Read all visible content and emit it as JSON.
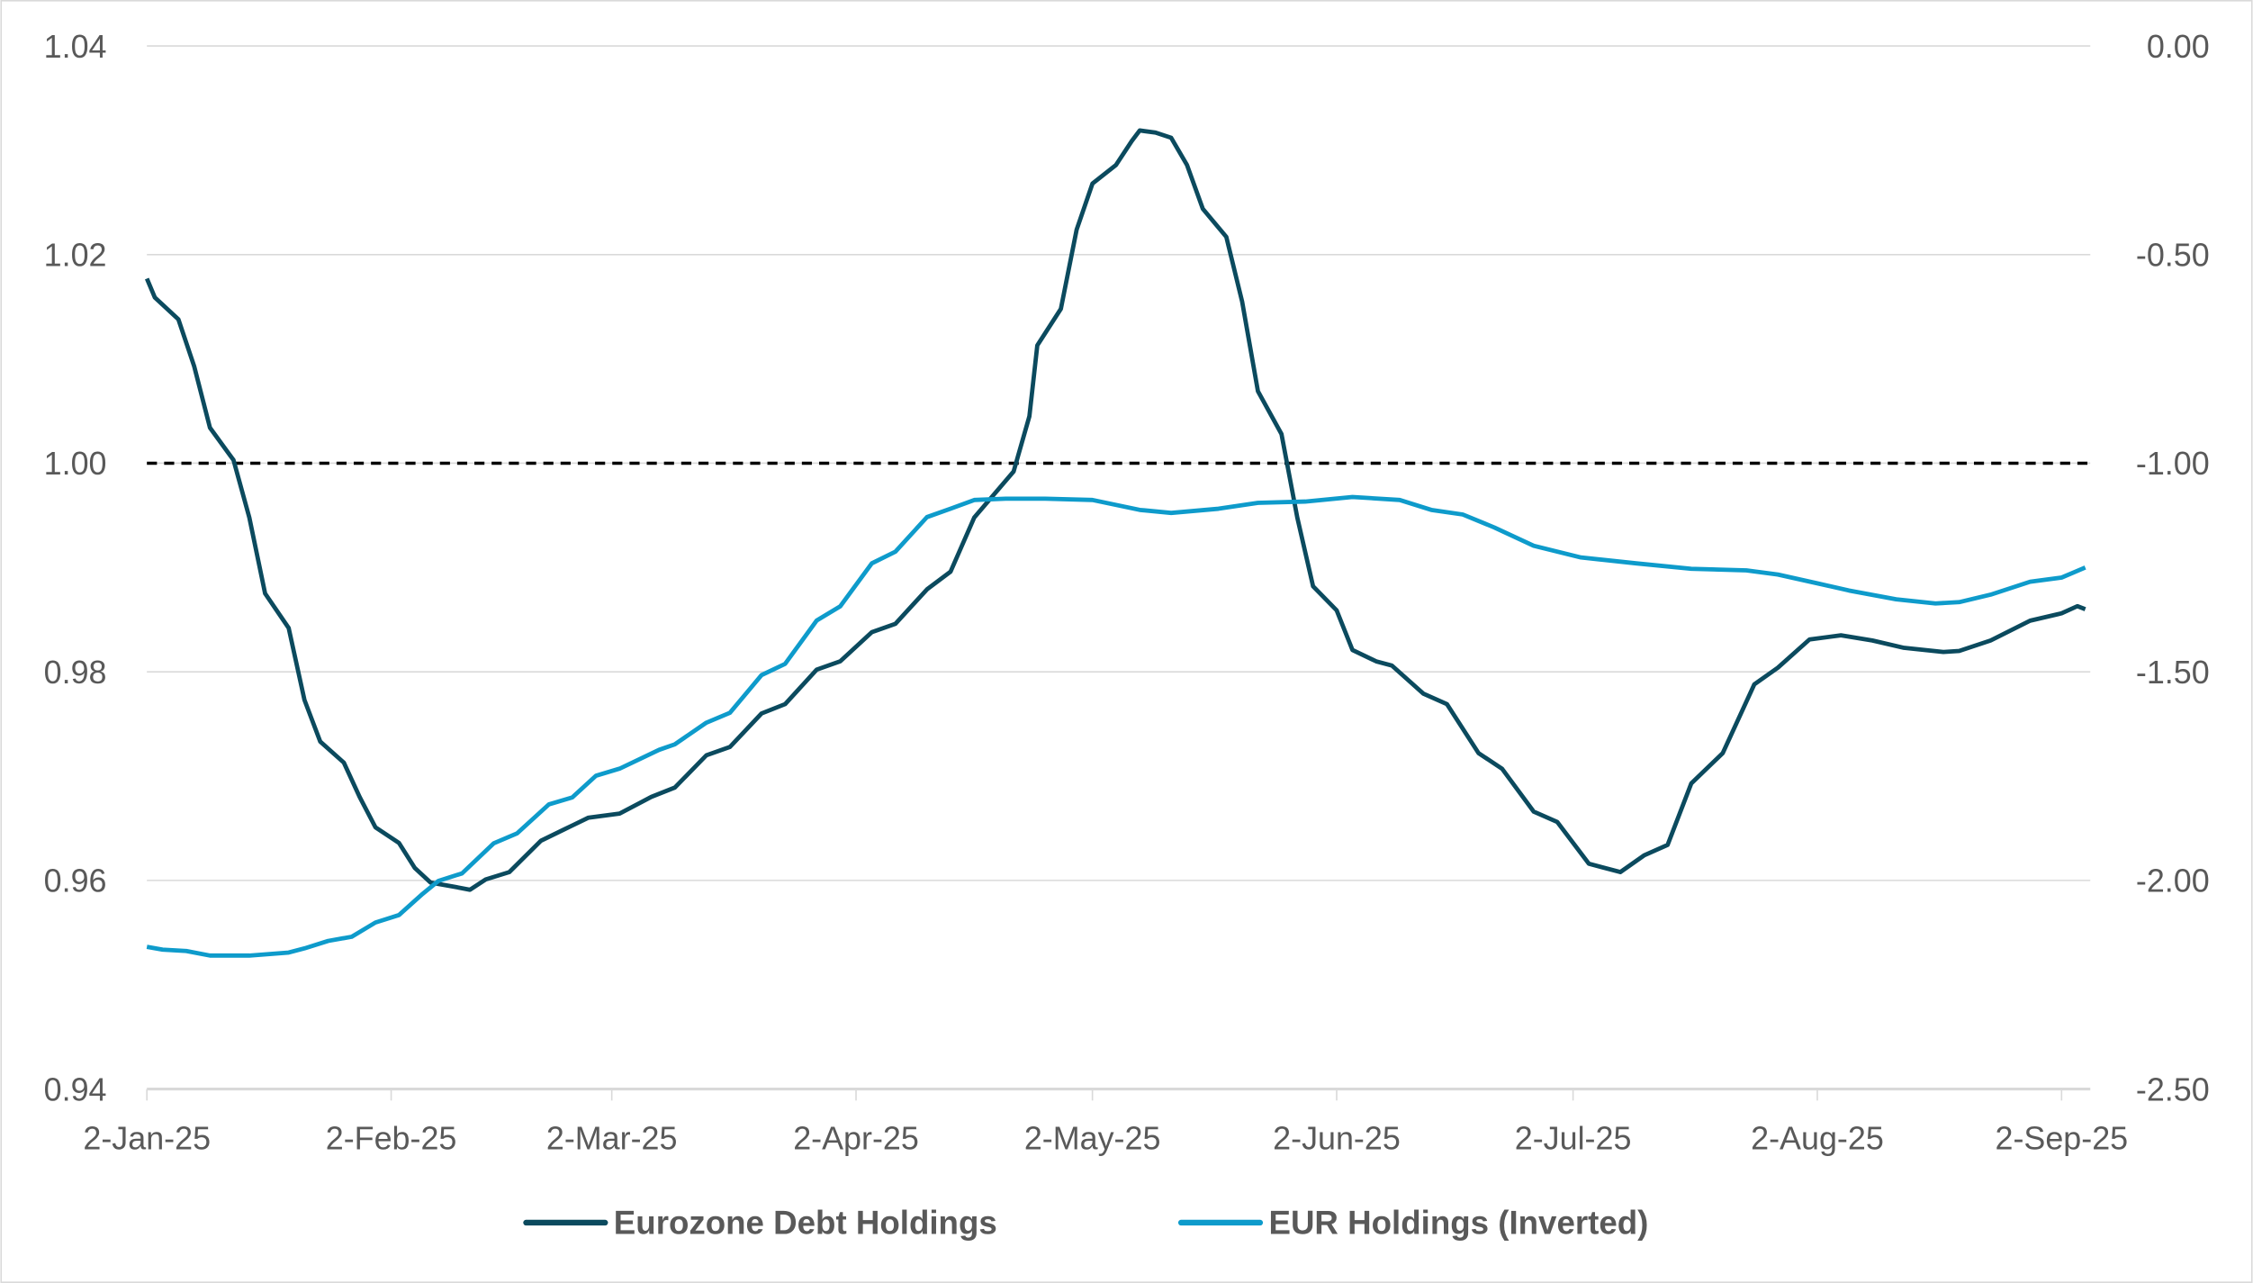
{
  "chart_data": {
    "type": "line",
    "title": "",
    "x_range": [
      "2025-01-02",
      "2025-09-06"
    ],
    "x_ticks": [
      {
        "date": "2025-01-02",
        "label": "2-Jan-25"
      },
      {
        "date": "2025-02-02",
        "label": "2-Feb-25"
      },
      {
        "date": "2025-03-02",
        "label": "2-Mar-25"
      },
      {
        "date": "2025-04-02",
        "label": "2-Apr-25"
      },
      {
        "date": "2025-05-02",
        "label": "2-May-25"
      },
      {
        "date": "2025-06-02",
        "label": "2-Jun-25"
      },
      {
        "date": "2025-07-02",
        "label": "2-Jul-25"
      },
      {
        "date": "2025-08-02",
        "label": "2-Aug-25"
      },
      {
        "date": "2025-09-02",
        "label": "2-Sep-25"
      }
    ],
    "y_left": {
      "range": [
        0.94,
        1.04
      ],
      "ticks": [
        "0.94",
        "0.96",
        "0.98",
        "1.00",
        "1.02",
        "1.04"
      ]
    },
    "y_right": {
      "range": [
        -2.5,
        0
      ],
      "ticks": [
        "-2.50",
        "-2.00",
        "-1.50",
        "-1.00",
        "-0.50",
        "0.00"
      ]
    },
    "grid": true,
    "reference_line": {
      "axis": "left",
      "value": 1.0,
      "style": "dashed",
      "color": "#000000"
    },
    "legend_position": "bottom",
    "series": [
      {
        "name": "Eurozone Debt Holdings",
        "axis": "left",
        "color": "#0B4A5E",
        "points": [
          [
            "2025-01-02",
            1.0177
          ],
          [
            "2025-01-03",
            1.0159
          ],
          [
            "2025-01-06",
            1.0138
          ],
          [
            "2025-01-08",
            1.0093
          ],
          [
            "2025-01-10",
            1.0034
          ],
          [
            "2025-01-13",
            1.0003
          ],
          [
            "2025-01-15",
            0.9948
          ],
          [
            "2025-01-17",
            0.9875
          ],
          [
            "2025-01-20",
            0.9842
          ],
          [
            "2025-01-22",
            0.9773
          ],
          [
            "2025-01-24",
            0.9733
          ],
          [
            "2025-01-27",
            0.9713
          ],
          [
            "2025-01-29",
            0.968
          ],
          [
            "2025-01-31",
            0.9651
          ],
          [
            "2025-02-03",
            0.9636
          ],
          [
            "2025-02-05",
            0.9612
          ],
          [
            "2025-02-07",
            0.9598
          ],
          [
            "2025-02-10",
            0.9594
          ],
          [
            "2025-02-12",
            0.9591
          ],
          [
            "2025-02-14",
            0.9601
          ],
          [
            "2025-02-17",
            0.9608
          ],
          [
            "2025-02-21",
            0.9638
          ],
          [
            "2025-02-24",
            0.9649
          ],
          [
            "2025-02-27",
            0.966
          ],
          [
            "2025-03-03",
            0.9664
          ],
          [
            "2025-03-07",
            0.968
          ],
          [
            "2025-03-10",
            0.9689
          ],
          [
            "2025-03-14",
            0.972
          ],
          [
            "2025-03-17",
            0.9728
          ],
          [
            "2025-03-21",
            0.976
          ],
          [
            "2025-03-24",
            0.9769
          ],
          [
            "2025-03-28",
            0.9802
          ],
          [
            "2025-03-31",
            0.981
          ],
          [
            "2025-04-04",
            0.9838
          ],
          [
            "2025-04-07",
            0.9846
          ],
          [
            "2025-04-11",
            0.9879
          ],
          [
            "2025-04-14",
            0.9896
          ],
          [
            "2025-04-17",
            0.9948
          ],
          [
            "2025-04-22",
            0.9992
          ],
          [
            "2025-04-24",
            1.0045
          ],
          [
            "2025-04-25",
            1.0113
          ],
          [
            "2025-04-28",
            1.0148
          ],
          [
            "2025-04-30",
            1.0224
          ],
          [
            "2025-05-02",
            1.0268
          ],
          [
            "2025-05-05",
            1.0286
          ],
          [
            "2025-05-07",
            1.0309
          ],
          [
            "2025-05-08",
            1.0319
          ],
          [
            "2025-05-10",
            1.0317
          ],
          [
            "2025-05-12",
            1.0312
          ],
          [
            "2025-05-14",
            1.0286
          ],
          [
            "2025-05-16",
            1.0244
          ],
          [
            "2025-05-19",
            1.0217
          ],
          [
            "2025-05-21",
            1.0155
          ],
          [
            "2025-05-23",
            1.0069
          ],
          [
            "2025-05-26",
            1.0028
          ],
          [
            "2025-05-28",
            0.9948
          ],
          [
            "2025-05-30",
            0.9882
          ],
          [
            "2025-06-02",
            0.9859
          ],
          [
            "2025-06-04",
            0.9821
          ],
          [
            "2025-06-07",
            0.981
          ],
          [
            "2025-06-09",
            0.9806
          ],
          [
            "2025-06-13",
            0.9779
          ],
          [
            "2025-06-16",
            0.9769
          ],
          [
            "2025-06-20",
            0.9722
          ],
          [
            "2025-06-23",
            0.9707
          ],
          [
            "2025-06-27",
            0.9666
          ],
          [
            "2025-06-30",
            0.9656
          ],
          [
            "2025-07-04",
            0.9616
          ],
          [
            "2025-07-08",
            0.9608
          ],
          [
            "2025-07-11",
            0.9624
          ],
          [
            "2025-07-14",
            0.9634
          ],
          [
            "2025-07-17",
            0.9693
          ],
          [
            "2025-07-21",
            0.9722
          ],
          [
            "2025-07-25",
            0.9788
          ],
          [
            "2025-07-28",
            0.9804
          ],
          [
            "2025-08-01",
            0.9831
          ],
          [
            "2025-08-05",
            0.9835
          ],
          [
            "2025-08-09",
            0.983
          ],
          [
            "2025-08-13",
            0.9823
          ],
          [
            "2025-08-18",
            0.9819
          ],
          [
            "2025-08-20",
            0.982
          ],
          [
            "2025-08-24",
            0.983
          ],
          [
            "2025-08-29",
            0.9849
          ],
          [
            "2025-09-02",
            0.9856
          ],
          [
            "2025-09-04",
            0.9863
          ],
          [
            "2025-09-05",
            0.986
          ]
        ]
      },
      {
        "name": "EUR Holdings (Inverted)",
        "axis": "right",
        "color": "#0E9BCB",
        "points": [
          [
            "2025-01-02",
            -2.159
          ],
          [
            "2025-01-04",
            -2.166
          ],
          [
            "2025-01-07",
            -2.169
          ],
          [
            "2025-01-10",
            -2.18
          ],
          [
            "2025-01-15",
            -2.18
          ],
          [
            "2025-01-20",
            -2.173
          ],
          [
            "2025-01-22",
            -2.163
          ],
          [
            "2025-01-25",
            -2.145
          ],
          [
            "2025-01-28",
            -2.135
          ],
          [
            "2025-01-31",
            -2.101
          ],
          [
            "2025-02-03",
            -2.083
          ],
          [
            "2025-02-06",
            -2.032
          ],
          [
            "2025-02-08",
            -2.001
          ],
          [
            "2025-02-11",
            -1.983
          ],
          [
            "2025-02-15",
            -1.911
          ],
          [
            "2025-02-18",
            -1.887
          ],
          [
            "2025-02-22",
            -1.818
          ],
          [
            "2025-02-25",
            -1.801
          ],
          [
            "2025-02-28",
            -1.749
          ],
          [
            "2025-03-03",
            -1.732
          ],
          [
            "2025-03-08",
            -1.687
          ],
          [
            "2025-03-10",
            -1.674
          ],
          [
            "2025-03-14",
            -1.622
          ],
          [
            "2025-03-17",
            -1.598
          ],
          [
            "2025-03-21",
            -1.508
          ],
          [
            "2025-03-24",
            -1.481
          ],
          [
            "2025-03-28",
            -1.377
          ],
          [
            "2025-03-31",
            -1.343
          ],
          [
            "2025-04-04",
            -1.24
          ],
          [
            "2025-04-07",
            -1.212
          ],
          [
            "2025-04-11",
            -1.129
          ],
          [
            "2025-04-14",
            -1.109
          ],
          [
            "2025-04-17",
            -1.088
          ],
          [
            "2025-04-21",
            -1.085
          ],
          [
            "2025-04-26",
            -1.085
          ],
          [
            "2025-05-02",
            -1.088
          ],
          [
            "2025-05-08",
            -1.112
          ],
          [
            "2025-05-12",
            -1.119
          ],
          [
            "2025-05-18",
            -1.109
          ],
          [
            "2025-05-23",
            -1.095
          ],
          [
            "2025-05-29",
            -1.092
          ],
          [
            "2025-06-04",
            -1.081
          ],
          [
            "2025-06-10",
            -1.088
          ],
          [
            "2025-06-14",
            -1.112
          ],
          [
            "2025-06-18",
            -1.123
          ],
          [
            "2025-06-22",
            -1.154
          ],
          [
            "2025-06-27",
            -1.198
          ],
          [
            "2025-07-03",
            -1.226
          ],
          [
            "2025-07-10",
            -1.24
          ],
          [
            "2025-07-17",
            -1.253
          ],
          [
            "2025-07-24",
            -1.257
          ],
          [
            "2025-07-28",
            -1.267
          ],
          [
            "2025-08-02",
            -1.288
          ],
          [
            "2025-08-06",
            -1.305
          ],
          [
            "2025-08-12",
            -1.326
          ],
          [
            "2025-08-17",
            -1.336
          ],
          [
            "2025-08-20",
            -1.333
          ],
          [
            "2025-08-24",
            -1.315
          ],
          [
            "2025-08-29",
            -1.284
          ],
          [
            "2025-09-02",
            -1.274
          ],
          [
            "2025-09-05",
            -1.25
          ]
        ]
      }
    ]
  }
}
